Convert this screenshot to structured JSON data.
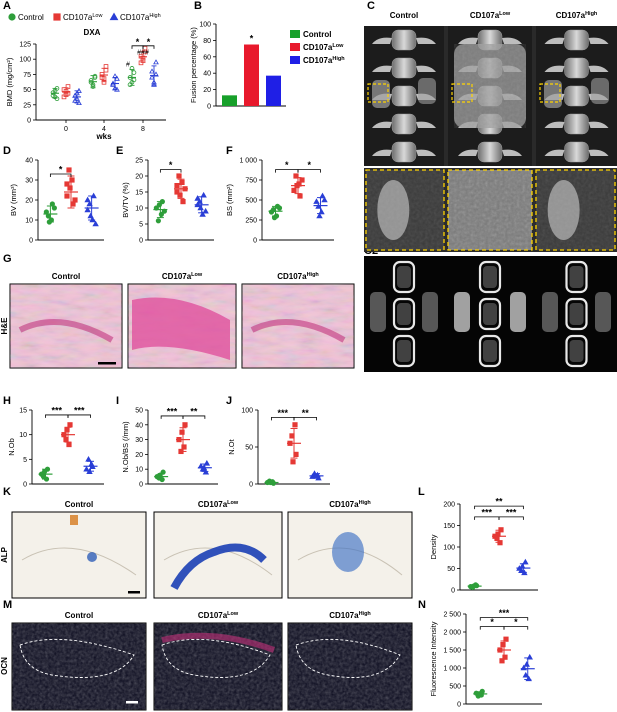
{
  "legend_top": {
    "items": [
      {
        "label": "Control",
        "sup": "",
        "color": "#2e9e3a",
        "shape": "circle"
      },
      {
        "label": "CD107a",
        "sup": "Low",
        "color": "#e53935",
        "shape": "square"
      },
      {
        "label": "CD107a",
        "sup": "High",
        "color": "#2a3fd6",
        "shape": "triangle"
      }
    ]
  },
  "legend_b": {
    "items": [
      {
        "label": "Control",
        "sup": "",
        "color": "#17a02a"
      },
      {
        "label": "CD107a",
        "sup": "Low",
        "color": "#e8192c"
      },
      {
        "label": "CD107a",
        "sup": "High",
        "color": "#1f1fe6"
      }
    ]
  },
  "image_panels": {
    "c_headers": [
      {
        "label": "Control",
        "sup": ""
      },
      {
        "label": "CD107a",
        "sup": "Low"
      },
      {
        "label": "CD107a",
        "sup": "High"
      }
    ],
    "g_headers": [
      {
        "label": "Control",
        "sup": ""
      },
      {
        "label": "CD107a",
        "sup": "Low"
      },
      {
        "label": "CD107a",
        "sup": "High"
      }
    ],
    "k_headers": [
      {
        "label": "Control",
        "sup": ""
      },
      {
        "label": "CD107a",
        "sup": "Low"
      },
      {
        "label": "CD107a",
        "sup": "High"
      }
    ],
    "m_headers": [
      {
        "label": "Control",
        "sup": ""
      },
      {
        "label": "CD107a",
        "sup": "Low"
      },
      {
        "label": "CD107a",
        "sup": "High"
      }
    ],
    "row_labels": {
      "G": "H&E",
      "K": "ALP",
      "M": "OCN"
    }
  },
  "panel_labels": [
    "A",
    "B",
    "C",
    "C1",
    "C2",
    "D",
    "E",
    "F",
    "G",
    "H",
    "I",
    "J",
    "K",
    "L",
    "M",
    "N"
  ],
  "colors": {
    "control": "#2e9e3a",
    "low": "#e53935",
    "high": "#2a3fd6"
  },
  "chart_data": [
    {
      "id": "A",
      "type": "scatter",
      "title": "DXA",
      "xlabel": "wks",
      "ylabel": "BMD (mg/cm²)",
      "categories": [
        "0",
        "4",
        "8"
      ],
      "ylim": [
        0,
        125
      ],
      "yticks": [
        0,
        25,
        50,
        75,
        100,
        125
      ],
      "series": [
        {
          "name": "Control",
          "groups": [
            [
              45,
              38,
              52,
              40,
              48,
              35
            ],
            [
              62,
              55,
              70,
              65,
              58,
              72
            ],
            [
              70,
              62,
              78,
              58,
              85,
              66
            ]
          ],
          "mean": [
            44,
            63,
            70
          ],
          "sd": [
            8,
            10,
            13
          ]
        },
        {
          "name": "CD107a Low",
          "groups": [
            [
              50,
              42,
              55,
              38,
              47,
              44
            ],
            [
              75,
              68,
              82,
              70,
              62,
              88
            ],
            [
              105,
              98,
              112,
              94,
              102,
              118
            ]
          ],
          "mean": [
            46,
            74,
            104
          ],
          "sd": [
            7,
            11,
            9
          ]
        },
        {
          "name": "CD107a High",
          "groups": [
            [
              40,
              35,
              48,
              32,
              44,
              28
            ],
            [
              60,
              52,
              68,
              58,
              72,
              50
            ],
            [
              80,
              62,
              95,
              70,
              58,
              75
            ]
          ],
          "mean": [
            38,
            60,
            73
          ],
          "sd": [
            10,
            10,
            16
          ]
        }
      ],
      "annotations": [
        "*",
        "*",
        "#",
        "###"
      ]
    },
    {
      "id": "B",
      "type": "bar",
      "ylabel": "Fusion percentage (%)",
      "categories": [
        "Control",
        "CD107a Low",
        "CD107a High"
      ],
      "values": [
        13,
        75,
        37
      ],
      "ylim": [
        0,
        100
      ],
      "yticks": [
        0,
        20,
        40,
        60,
        80,
        100
      ],
      "annotations": [
        "*"
      ]
    },
    {
      "id": "D",
      "type": "scatter",
      "ylabel": "BV (mm³)",
      "ylim": [
        0,
        40
      ],
      "yticks": [
        0,
        10,
        20,
        30,
        40
      ],
      "groups": [
        [
          14,
          10,
          18,
          12,
          9,
          16
        ],
        [
          22,
          30,
          18,
          35,
          26,
          20,
          28
        ],
        [
          15,
          10,
          22,
          18,
          12,
          8,
          20
        ]
      ],
      "mean": [
        13,
        24,
        16
      ],
      "sd": [
        4,
        8,
        6
      ],
      "annotations": [
        "*"
      ]
    },
    {
      "id": "E",
      "type": "scatter",
      "ylabel": "BV/TV (%)",
      "ylim": [
        0,
        25
      ],
      "yticks": [
        0,
        5,
        10,
        15,
        20,
        25
      ],
      "groups": [
        [
          10,
          8,
          12,
          6,
          11,
          9
        ],
        [
          15,
          18,
          12,
          20,
          14,
          16,
          17
        ],
        [
          11,
          8,
          14,
          12,
          10,
          9,
          13
        ]
      ],
      "mean": [
        9.5,
        16,
        11
      ],
      "sd": [
        2.5,
        3,
        2.5
      ],
      "annotations": [
        "*"
      ]
    },
    {
      "id": "F",
      "type": "scatter",
      "ylabel": "BS (mm²)",
      "ylim": [
        0,
        1000
      ],
      "yticks": [
        0,
        250,
        500,
        750,
        1000
      ],
      "groups": [
        [
          350,
          300,
          420,
          380,
          280,
          400
        ],
        [
          620,
          700,
          550,
          800,
          680,
          750
        ],
        [
          480,
          350,
          550,
          420,
          300,
          500
        ]
      ],
      "mean": [
        360,
        680,
        430
      ],
      "sd": [
        60,
        100,
        100
      ],
      "annotations": [
        "*",
        "*"
      ]
    },
    {
      "id": "H",
      "type": "scatter",
      "ylabel": "N.Ob",
      "ylim": [
        0,
        15
      ],
      "yticks": [
        0,
        5,
        10,
        15
      ],
      "groups": [
        [
          2,
          1,
          3,
          1.5,
          2.5
        ],
        [
          10,
          8,
          12,
          9,
          11
        ],
        [
          3,
          4,
          3.5,
          5,
          2.5
        ]
      ],
      "mean": [
        2,
        10,
        3.6
      ],
      "sd": [
        1,
        1.5,
        1
      ],
      "annotations": [
        "***",
        "***"
      ]
    },
    {
      "id": "I",
      "type": "scatter",
      "ylabel": "N.Ob/BS (/mm)",
      "ylim": [
        0,
        50
      ],
      "yticks": [
        0,
        10,
        20,
        30,
        40,
        50
      ],
      "groups": [
        [
          5,
          3,
          8,
          4,
          6
        ],
        [
          30,
          25,
          40,
          22,
          35
        ],
        [
          12,
          8,
          14,
          10,
          11
        ]
      ],
      "mean": [
        5,
        30,
        11
      ],
      "sd": [
        2,
        8,
        2.5
      ],
      "annotations": [
        "***",
        "**"
      ]
    },
    {
      "id": "J",
      "type": "scatter",
      "ylabel": "N.Ot",
      "ylim": [
        0,
        100
      ],
      "yticks": [
        0,
        50,
        100
      ],
      "groups": [
        [
          2,
          3,
          1,
          4,
          2
        ],
        [
          55,
          80,
          40,
          65,
          30
        ],
        [
          10,
          12,
          8,
          14,
          11
        ]
      ],
      "mean": [
        2,
        55,
        11
      ],
      "sd": [
        1,
        20,
        3
      ],
      "annotations": [
        "***",
        "**"
      ]
    },
    {
      "id": "L",
      "type": "scatter",
      "ylabel": "Density",
      "ylim": [
        0,
        200
      ],
      "yticks": [
        0,
        50,
        100,
        150,
        200
      ],
      "groups": [
        [
          8,
          12,
          10,
          6,
          9
        ],
        [
          125,
          110,
          140,
          120,
          130
        ],
        [
          50,
          40,
          65,
          45,
          55
        ]
      ],
      "mean": [
        9,
        125,
        51
      ],
      "sd": [
        3,
        14,
        10
      ],
      "annotations": [
        "**",
        "***",
        "***"
      ]
    },
    {
      "id": "N",
      "type": "scatter",
      "ylabel": "Fluorescence Intensity",
      "ylim": [
        0,
        2500
      ],
      "yticks": [
        0,
        500,
        1000,
        1500,
        2000,
        2500
      ],
      "groups": [
        [
          300,
          250,
          350,
          220,
          280
        ],
        [
          1500,
          1300,
          1800,
          1200,
          1650
        ],
        [
          1000,
          700,
          1300,
          800,
          1100
        ]
      ],
      "mean": [
        280,
        1500,
        980
      ],
      "sd": [
        60,
        250,
        300
      ],
      "annotations": [
        "***",
        "*",
        "*"
      ]
    }
  ]
}
